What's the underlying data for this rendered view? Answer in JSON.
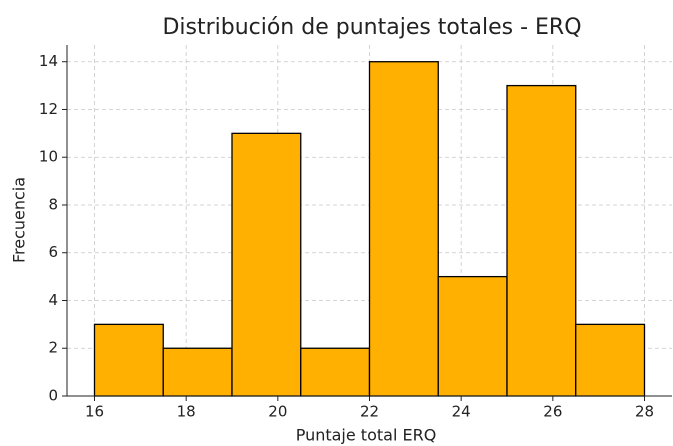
{
  "chart_data": {
    "type": "histogram",
    "title": "Distribución de puntajes totales - ERQ",
    "x_label": "Puntaje total ERQ",
    "y_label": "Frecuencia",
    "bins": [
      16,
      17.5,
      19,
      20.5,
      22,
      23.5,
      25,
      26.5,
      28
    ],
    "values": [
      3,
      2,
      11,
      2,
      14,
      5,
      13,
      3
    ],
    "color": "#ffb000",
    "edge_color": "#000000",
    "xlim": [
      15.4,
      28.6
    ],
    "ylim": [
      0,
      14.7
    ],
    "xticks": [
      16,
      18,
      20,
      22,
      24,
      26,
      28
    ],
    "yticks": [
      0,
      2,
      4,
      6,
      8,
      10,
      12,
      14
    ],
    "grid": true
  }
}
